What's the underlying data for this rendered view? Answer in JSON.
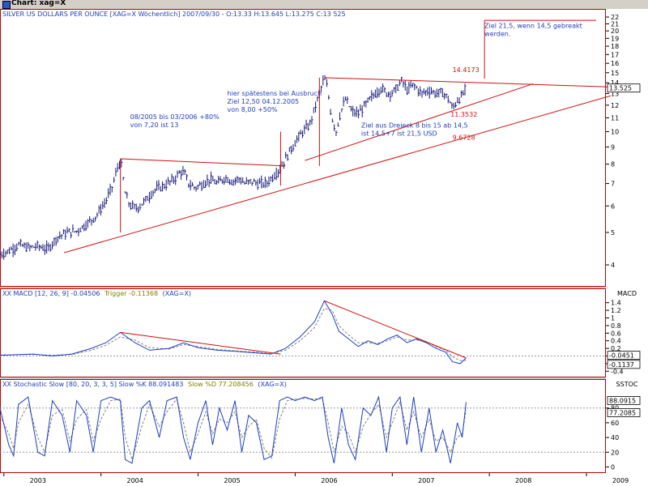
{
  "window": {
    "title": "Chart: xag=X"
  },
  "chart_data": [
    {
      "type": "candlestick",
      "title": "SILVER US DOLLARS PER OUNCE [XAG=X  Wöchentlich] 2007/09/30 - O:13.33 H:13.645 L:13.275 C:13 525",
      "scale": "log",
      "ylim": [
        3.5,
        22.5
      ],
      "yticks": [
        "4",
        "5",
        "6",
        "7",
        "8",
        "9",
        "10",
        "11",
        "12",
        "13",
        "14",
        "15",
        "16",
        "17",
        "18",
        "19",
        "20",
        "21",
        "22"
      ],
      "ytick_values": [
        4,
        5,
        6,
        7,
        8,
        9,
        10,
        11,
        12,
        13,
        14,
        15,
        16,
        17,
        18,
        19,
        20,
        21,
        22
      ],
      "last_value_box": "13.525",
      "x_years": [
        "2003",
        "2004",
        "2005",
        "2006",
        "2007",
        "2008",
        "2009"
      ],
      "xlim": [
        2002.96,
        2009.2
      ],
      "price_path": [
        [
          2002.96,
          4.3
        ],
        [
          2003.05,
          4.4
        ],
        [
          2003.15,
          4.6
        ],
        [
          2003.25,
          4.5
        ],
        [
          2003.35,
          4.55
        ],
        [
          2003.45,
          4.45
        ],
        [
          2003.55,
          4.85
        ],
        [
          2003.65,
          5.0
        ],
        [
          2003.75,
          5.05
        ],
        [
          2003.85,
          5.3
        ],
        [
          2003.95,
          5.6
        ],
        [
          2004.05,
          6.2
        ],
        [
          2004.12,
          6.9
        ],
        [
          2004.17,
          7.8
        ],
        [
          2004.2,
          8.2
        ],
        [
          2004.25,
          6.5
        ],
        [
          2004.3,
          6.0
        ],
        [
          2004.37,
          5.9
        ],
        [
          2004.45,
          6.2
        ],
        [
          2004.55,
          6.7
        ],
        [
          2004.65,
          6.9
        ],
        [
          2004.75,
          7.2
        ],
        [
          2004.82,
          7.6
        ],
        [
          2004.86,
          7.5
        ],
        [
          2004.9,
          7.0
        ],
        [
          2004.97,
          6.8
        ],
        [
          2005.05,
          7.0
        ],
        [
          2005.12,
          7.2
        ],
        [
          2005.2,
          7.0
        ],
        [
          2005.28,
          7.3
        ],
        [
          2005.35,
          7.1
        ],
        [
          2005.42,
          7.25
        ],
        [
          2005.48,
          7.0
        ],
        [
          2005.55,
          7.1
        ],
        [
          2005.62,
          7.0
        ],
        [
          2005.7,
          7.0
        ],
        [
          2005.78,
          7.4
        ],
        [
          2005.85,
          7.8
        ],
        [
          2005.9,
          8.3
        ],
        [
          2005.95,
          8.8
        ],
        [
          2006.02,
          9.5
        ],
        [
          2006.08,
          10.0
        ],
        [
          2006.15,
          10.5
        ],
        [
          2006.2,
          11.7
        ],
        [
          2006.25,
          13.0
        ],
        [
          2006.3,
          14.5
        ],
        [
          2006.33,
          13.5
        ],
        [
          2006.37,
          11.2
        ],
        [
          2006.42,
          10.0
        ],
        [
          2006.47,
          11.5
        ],
        [
          2006.52,
          12.5
        ],
        [
          2006.58,
          11.5
        ],
        [
          2006.65,
          11.3
        ],
        [
          2006.72,
          12.0
        ],
        [
          2006.8,
          12.8
        ],
        [
          2006.88,
          13.5
        ],
        [
          2006.95,
          13.0
        ],
        [
          2007.02,
          13.2
        ],
        [
          2007.1,
          14.2
        ],
        [
          2007.15,
          13.3
        ],
        [
          2007.22,
          13.8
        ],
        [
          2007.3,
          13.0
        ],
        [
          2007.38,
          13.3
        ],
        [
          2007.45,
          13.0
        ],
        [
          2007.52,
          13.1
        ],
        [
          2007.58,
          12.5
        ],
        [
          2007.62,
          11.7
        ],
        [
          2007.67,
          12.4
        ],
        [
          2007.72,
          12.8
        ],
        [
          2007.76,
          13.5
        ]
      ],
      "annotations": [
        {
          "lines": [
            "08/2005 bis 03/2006 +80%",
            "von 7,20 ist 13"
          ],
          "x": 2004.3,
          "y": 10.9
        },
        {
          "lines": [
            "hier spätestens bei Ausbruch",
            "Ziel 12,50 04.12.2005",
            "von 8,00 +50%"
          ],
          "x": 2005.3,
          "y": 12.8
        },
        {
          "lines": [
            "Ziel aus Dreieck 8 bis 15 ab 14,5",
            "ist 14,5+7 ist 21,5 USD"
          ],
          "x": 2006.68,
          "y": 10.3
        },
        {
          "lines": [
            "Ziel 21,5, wenn 14,5 gebreakt",
            "werden."
          ],
          "x": 2007.95,
          "y": 20.4
        }
      ],
      "level_labels": [
        {
          "text": "14.4173",
          "value": 14.4173
        },
        {
          "text": "11.3532",
          "value": 11.3532
        },
        {
          "text": "9.6728",
          "value": 9.6728
        }
      ],
      "trendlines": [
        {
          "from": [
            2003.62,
            4.35
          ],
          "to": [
            2009.25,
            12.8
          ]
        },
        {
          "from": [
            2006.1,
            8.2
          ],
          "to": [
            2008.45,
            13.9
          ]
        },
        {
          "from": [
            2006.3,
            14.5
          ],
          "to": [
            2009.25,
            13.6
          ]
        },
        {
          "from": [
            2004.2,
            8.3
          ],
          "to": [
            2005.9,
            7.9
          ]
        }
      ],
      "vlines": [
        {
          "x": 2004.2,
          "y1": 5.0,
          "y2": 8.3
        },
        {
          "x": 2005.85,
          "y1": 6.9,
          "y2": 10.0
        },
        {
          "x": 2006.25,
          "y1": 7.9,
          "y2": 14.5
        },
        {
          "x": 2007.95,
          "y1": 14.4,
          "y2": 21.5
        }
      ],
      "hlines": [
        {
          "x1": 2007.95,
          "x2": 2009.1,
          "y": 21.5
        }
      ]
    },
    {
      "type": "line",
      "title": "XX MACD [12, 26, 9] -0.04506",
      "trigger_label": "Trigger -0.11368",
      "instrument_label": "(XAG=X)",
      "axis_label": "MACD",
      "ylim": [
        -0.5,
        1.5
      ],
      "yticks": [
        "-0.4",
        "-0.2",
        "0",
        "0.2",
        "0.4",
        "0.6",
        "0.8",
        "1",
        "1.2",
        "1.4"
      ],
      "ytick_values": [
        -0.4,
        -0.2,
        0,
        0.2,
        0.4,
        0.6,
        0.8,
        1,
        1.2,
        1.4
      ],
      "value_boxes": [
        "-0.0451",
        "-0.1137"
      ],
      "macd_path": [
        [
          2002.96,
          0.02
        ],
        [
          2003.3,
          0.05
        ],
        [
          2003.5,
          0.0
        ],
        [
          2003.7,
          0.05
        ],
        [
          2003.9,
          0.2
        ],
        [
          2004.05,
          0.35
        ],
        [
          2004.2,
          0.62
        ],
        [
          2004.35,
          0.35
        ],
        [
          2004.5,
          0.15
        ],
        [
          2004.7,
          0.2
        ],
        [
          2004.85,
          0.35
        ],
        [
          2005.0,
          0.22
        ],
        [
          2005.2,
          0.15
        ],
        [
          2005.4,
          0.12
        ],
        [
          2005.6,
          0.08
        ],
        [
          2005.75,
          0.05
        ],
        [
          2005.9,
          0.2
        ],
        [
          2006.05,
          0.5
        ],
        [
          2006.2,
          0.9
        ],
        [
          2006.3,
          1.45
        ],
        [
          2006.38,
          1.1
        ],
        [
          2006.45,
          0.65
        ],
        [
          2006.55,
          0.45
        ],
        [
          2006.65,
          0.25
        ],
        [
          2006.75,
          0.4
        ],
        [
          2006.85,
          0.3
        ],
        [
          2006.95,
          0.45
        ],
        [
          2007.05,
          0.55
        ],
        [
          2007.15,
          0.35
        ],
        [
          2007.25,
          0.45
        ],
        [
          2007.35,
          0.35
        ],
        [
          2007.45,
          0.2
        ],
        [
          2007.55,
          0.1
        ],
        [
          2007.62,
          -0.15
        ],
        [
          2007.7,
          -0.2
        ],
        [
          2007.76,
          -0.05
        ]
      ],
      "trigger_path": [
        [
          2002.96,
          0.03
        ],
        [
          2003.3,
          0.04
        ],
        [
          2003.5,
          0.02
        ],
        [
          2003.7,
          0.04
        ],
        [
          2003.9,
          0.15
        ],
        [
          2004.05,
          0.28
        ],
        [
          2004.2,
          0.5
        ],
        [
          2004.35,
          0.42
        ],
        [
          2004.5,
          0.22
        ],
        [
          2004.7,
          0.18
        ],
        [
          2004.85,
          0.3
        ],
        [
          2005.0,
          0.25
        ],
        [
          2005.2,
          0.17
        ],
        [
          2005.4,
          0.13
        ],
        [
          2005.6,
          0.1
        ],
        [
          2005.75,
          0.06
        ],
        [
          2005.9,
          0.15
        ],
        [
          2006.05,
          0.4
        ],
        [
          2006.2,
          0.75
        ],
        [
          2006.3,
          1.25
        ],
        [
          2006.38,
          1.2
        ],
        [
          2006.45,
          0.8
        ],
        [
          2006.55,
          0.55
        ],
        [
          2006.65,
          0.35
        ],
        [
          2006.75,
          0.35
        ],
        [
          2006.85,
          0.33
        ],
        [
          2006.95,
          0.4
        ],
        [
          2007.05,
          0.5
        ],
        [
          2007.15,
          0.42
        ],
        [
          2007.25,
          0.42
        ],
        [
          2007.35,
          0.38
        ],
        [
          2007.45,
          0.25
        ],
        [
          2007.55,
          0.15
        ],
        [
          2007.62,
          -0.02
        ],
        [
          2007.7,
          -0.12
        ],
        [
          2007.76,
          -0.11
        ]
      ],
      "trendlines": [
        {
          "from": [
            2004.2,
            0.62
          ],
          "to": [
            2005.85,
            0.05
          ]
        },
        {
          "from": [
            2006.3,
            1.45
          ],
          "to": [
            2007.76,
            -0.05
          ]
        }
      ]
    },
    {
      "type": "line",
      "title": "XX Stochastic Slow [80, 20, 3, 3, 5] Slow %K 88.091483",
      "d_label": "Slow %D 77.208456",
      "instrument_label": "(XAG=X)",
      "axis_label": "SSTOC",
      "ylim": [
        -5,
        105
      ],
      "yticks": [
        "0",
        "20",
        "40",
        "60",
        "80"
      ],
      "ytick_values": [
        0,
        20,
        40,
        60,
        80
      ],
      "value_boxes": [
        "88.0915",
        "77.2085"
      ],
      "levels": [
        20,
        80
      ],
      "k_path": [
        [
          2002.96,
          80
        ],
        [
          2003.05,
          30
        ],
        [
          2003.1,
          15
        ],
        [
          2003.15,
          85
        ],
        [
          2003.25,
          95
        ],
        [
          2003.35,
          20
        ],
        [
          2003.42,
          15
        ],
        [
          2003.5,
          90
        ],
        [
          2003.6,
          70
        ],
        [
          2003.68,
          20
        ],
        [
          2003.75,
          90
        ],
        [
          2003.85,
          70
        ],
        [
          2003.92,
          20
        ],
        [
          2004.0,
          90
        ],
        [
          2004.1,
          95
        ],
        [
          2004.2,
          90
        ],
        [
          2004.25,
          10
        ],
        [
          2004.32,
          5
        ],
        [
          2004.42,
          80
        ],
        [
          2004.5,
          90
        ],
        [
          2004.6,
          40
        ],
        [
          2004.68,
          90
        ],
        [
          2004.78,
          95
        ],
        [
          2004.85,
          40
        ],
        [
          2004.92,
          10
        ],
        [
          2005.0,
          60
        ],
        [
          2005.08,
          90
        ],
        [
          2005.15,
          30
        ],
        [
          2005.22,
          80
        ],
        [
          2005.3,
          50
        ],
        [
          2005.38,
          90
        ],
        [
          2005.45,
          20
        ],
        [
          2005.52,
          70
        ],
        [
          2005.6,
          60
        ],
        [
          2005.68,
          10
        ],
        [
          2005.76,
          15
        ],
        [
          2005.84,
          90
        ],
        [
          2005.92,
          95
        ],
        [
          2006.0,
          90
        ],
        [
          2006.1,
          95
        ],
        [
          2006.2,
          90
        ],
        [
          2006.28,
          95
        ],
        [
          2006.34,
          40
        ],
        [
          2006.4,
          5
        ],
        [
          2006.48,
          80
        ],
        [
          2006.55,
          30
        ],
        [
          2006.62,
          10
        ],
        [
          2006.7,
          80
        ],
        [
          2006.78,
          70
        ],
        [
          2006.86,
          95
        ],
        [
          2006.94,
          20
        ],
        [
          2007.0,
          80
        ],
        [
          2007.08,
          95
        ],
        [
          2007.15,
          30
        ],
        [
          2007.22,
          95
        ],
        [
          2007.3,
          20
        ],
        [
          2007.38,
          80
        ],
        [
          2007.45,
          20
        ],
        [
          2007.52,
          50
        ],
        [
          2007.6,
          5
        ],
        [
          2007.67,
          60
        ],
        [
          2007.72,
          40
        ],
        [
          2007.76,
          88
        ]
      ],
      "d_path": [
        [
          2002.96,
          70
        ],
        [
          2003.05,
          45
        ],
        [
          2003.1,
          25
        ],
        [
          2003.15,
          60
        ],
        [
          2003.25,
          85
        ],
        [
          2003.35,
          40
        ],
        [
          2003.42,
          20
        ],
        [
          2003.5,
          70
        ],
        [
          2003.6,
          78
        ],
        [
          2003.68,
          35
        ],
        [
          2003.75,
          65
        ],
        [
          2003.85,
          78
        ],
        [
          2003.92,
          35
        ],
        [
          2004.0,
          65
        ],
        [
          2004.1,
          90
        ],
        [
          2004.2,
          92
        ],
        [
          2004.25,
          40
        ],
        [
          2004.32,
          10
        ],
        [
          2004.42,
          55
        ],
        [
          2004.5,
          85
        ],
        [
          2004.6,
          55
        ],
        [
          2004.68,
          75
        ],
        [
          2004.78,
          92
        ],
        [
          2004.85,
          60
        ],
        [
          2004.92,
          20
        ],
        [
          2005.0,
          45
        ],
        [
          2005.08,
          75
        ],
        [
          2005.15,
          45
        ],
        [
          2005.22,
          65
        ],
        [
          2005.3,
          60
        ],
        [
          2005.38,
          75
        ],
        [
          2005.45,
          40
        ],
        [
          2005.52,
          55
        ],
        [
          2005.6,
          65
        ],
        [
          2005.68,
          25
        ],
        [
          2005.76,
          12
        ],
        [
          2005.84,
          65
        ],
        [
          2005.92,
          90
        ],
        [
          2006.0,
          92
        ],
        [
          2006.1,
          93
        ],
        [
          2006.2,
          92
        ],
        [
          2006.28,
          93
        ],
        [
          2006.34,
          60
        ],
        [
          2006.4,
          20
        ],
        [
          2006.48,
          55
        ],
        [
          2006.55,
          45
        ],
        [
          2006.62,
          20
        ],
        [
          2006.7,
          55
        ],
        [
          2006.78,
          72
        ],
        [
          2006.86,
          85
        ],
        [
          2006.94,
          40
        ],
        [
          2007.0,
          60
        ],
        [
          2007.08,
          88
        ],
        [
          2007.15,
          50
        ],
        [
          2007.22,
          75
        ],
        [
          2007.3,
          40
        ],
        [
          2007.38,
          65
        ],
        [
          2007.45,
          35
        ],
        [
          2007.52,
          40
        ],
        [
          2007.6,
          20
        ],
        [
          2007.67,
          40
        ],
        [
          2007.72,
          45
        ],
        [
          2007.76,
          77
        ]
      ]
    }
  ],
  "colors": {
    "price": "#14147a",
    "indicator": "#1e3fbf",
    "trigger": "#808080",
    "trendline": "#d01010",
    "frame": "#c00000",
    "panel_bg": "#ffffff"
  }
}
